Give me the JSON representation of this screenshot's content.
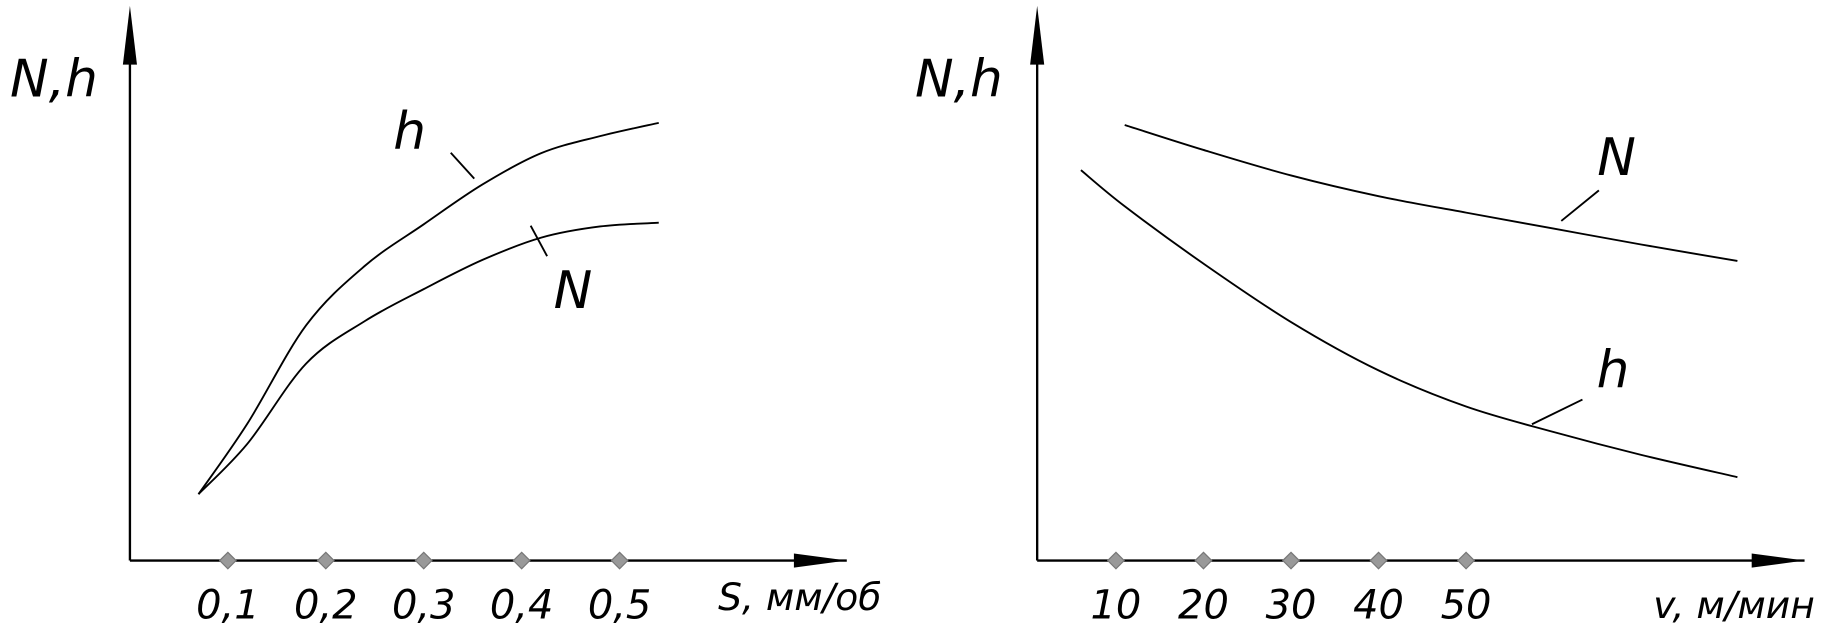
{
  "chart_data": [
    {
      "type": "line",
      "ylabel": "N,h",
      "xlabel": "S, мм/об",
      "x": [
        0.07,
        0.12,
        0.18,
        0.24,
        0.3,
        0.36,
        0.42,
        0.48,
        0.54
      ],
      "series": [
        {
          "name": "h",
          "color": "#000000",
          "values": [
            12.5,
            25.8,
            44.3,
            55.5,
            63.3,
            70.8,
            76.7,
            79.9,
            82.4
          ]
        },
        {
          "name": "N",
          "color": "#000000",
          "values": [
            12.5,
            22.0,
            37.1,
            45.1,
            51.1,
            56.6,
            60.8,
            62.9,
            63.6
          ]
        }
      ],
      "xlim": [
        0,
        0.726
      ],
      "ylim": [
        0,
        100
      ],
      "xticks": [
        {
          "value": 0.1,
          "label": "0,1"
        },
        {
          "value": 0.2,
          "label": "0,2"
        },
        {
          "value": 0.3,
          "label": "0,3"
        },
        {
          "value": 0.4,
          "label": "0,4"
        },
        {
          "value": 0.5,
          "label": "0,5"
        }
      ]
    },
    {
      "type": "line",
      "ylabel": "N,h",
      "xlabel": "v, м/мин",
      "x": [
        6,
        11,
        20,
        30,
        40,
        50,
        60,
        70,
        81
      ],
      "series": [
        {
          "name": "N",
          "color": "#000000",
          "values": [
            null,
            82.0,
            77.3,
            72.5,
            68.6,
            65.5,
            62.5,
            59.5,
            56.4
          ]
        },
        {
          "name": "h",
          "color": "#000000",
          "values": [
            73.5,
            66.7,
            55.9,
            44.9,
            35.8,
            29.0,
            24.2,
            19.9,
            15.7
          ]
        }
      ],
      "xlim": [
        1,
        88
      ],
      "ylim": [
        0,
        100
      ],
      "xticks": [
        10,
        20,
        30,
        40,
        50
      ]
    }
  ]
}
